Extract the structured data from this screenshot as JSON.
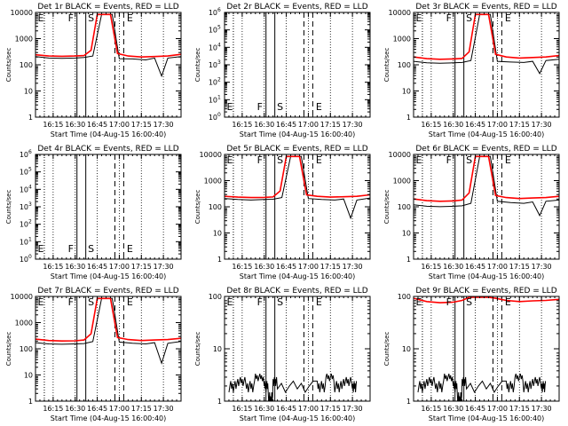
{
  "chart_data": [
    {
      "title": "Det 1r BLACK = Events, RED = LLD",
      "type": "line",
      "yscale": "log",
      "ylim": [
        1,
        12000
      ],
      "ytick_labels": [
        "1",
        "10",
        "100",
        "1000",
        "10000"
      ],
      "ylabel": "Counts/sec",
      "xlabel": "Start Time (04-Aug-15 16:00:40)",
      "xlim": [
        16.05,
        17.7
      ],
      "xtick_labels": [
        "16:15",
        "16:30",
        "16:45",
        "17:00",
        "17:15",
        "17:30"
      ],
      "markers": [
        {
          "label": "E",
          "x": 16.15,
          "style": "dotted"
        },
        {
          "label": "F",
          "x": 16.52,
          "style": "solid"
        },
        {
          "label": "S",
          "x": 16.62,
          "style": "solid"
        },
        {
          "label": "E",
          "x": 16.95,
          "style": "dashed"
        }
      ],
      "series": [
        {
          "name": "Events",
          "color": "#000000",
          "x": [
            16.05,
            16.2,
            16.35,
            16.5,
            16.6,
            16.7,
            16.8,
            16.92,
            17.0,
            17.15,
            17.3,
            17.4,
            17.48,
            17.55,
            17.7
          ],
          "y": [
            230,
            200,
            195,
            200,
            210,
            240,
            10000,
            10000,
            190,
            185,
            170,
            200,
            40,
            200,
            230
          ]
        },
        {
          "name": "LLD",
          "color": "#ff0000",
          "x": [
            16.05,
            16.2,
            16.35,
            16.5,
            16.6,
            16.68,
            16.75,
            16.9,
            16.98,
            17.1,
            17.25,
            17.4,
            17.55,
            17.7
          ],
          "y": [
            270,
            240,
            235,
            240,
            250,
            400,
            10000,
            10000,
            300,
            240,
            220,
            230,
            240,
            280
          ]
        }
      ]
    },
    {
      "title": "Det 2r BLACK = Events, RED = LLD",
      "type": "line",
      "yscale": "log",
      "ylim": [
        1,
        1000000
      ],
      "ytick_labels": [
        "10",
        "10",
        "10",
        "10",
        "10",
        "10",
        "10"
      ],
      "ytick_exponents": [
        "0",
        "1",
        "2",
        "3",
        "4",
        "5",
        "6"
      ],
      "ylabel": "Counts/sec",
      "xlabel": "Start Time (04-Aug-15 16:00:40)",
      "xlim": [
        16.05,
        17.7
      ],
      "xtick_labels": [
        "16:15",
        "16:30",
        "16:45",
        "17:00",
        "17:15",
        "17:30"
      ],
      "markers": [
        {
          "label": "E",
          "x": 16.15,
          "style": "dotted"
        },
        {
          "label": "F",
          "x": 16.52,
          "style": "solid"
        },
        {
          "label": "S",
          "x": 16.62,
          "style": "solid"
        },
        {
          "label": "E",
          "x": 16.95,
          "style": "dashed"
        }
      ],
      "series": []
    },
    {
      "title": "Det 3r BLACK = Events, RED = LLD",
      "type": "line",
      "yscale": "log",
      "ylim": [
        1,
        12000
      ],
      "ytick_labels": [
        "1",
        "10",
        "100",
        "1000",
        "10000"
      ],
      "ylabel": "Counts/sec",
      "xlabel": "Start Time (04-Aug-15 16:00:40)",
      "xlim": [
        16.05,
        17.7
      ],
      "xtick_labels": [
        "16:15",
        "16:30",
        "16:45",
        "17:00",
        "17:15",
        "17:30"
      ],
      "markers": [
        {
          "label": "E",
          "x": 16.15,
          "style": "dotted"
        },
        {
          "label": "F",
          "x": 16.52,
          "style": "solid"
        },
        {
          "label": "S",
          "x": 16.62,
          "style": "solid"
        },
        {
          "label": "E",
          "x": 16.95,
          "style": "dashed"
        }
      ],
      "series": [
        {
          "name": "Events",
          "color": "#000000",
          "x": [
            16.05,
            16.2,
            16.35,
            16.5,
            16.6,
            16.7,
            16.8,
            16.92,
            17.0,
            17.15,
            17.3,
            17.4,
            17.48,
            17.55,
            17.7
          ],
          "y": [
            150,
            130,
            125,
            130,
            135,
            160,
            10000,
            10000,
            150,
            140,
            135,
            150,
            50,
            160,
            180
          ]
        },
        {
          "name": "LLD",
          "color": "#ff0000",
          "x": [
            16.05,
            16.2,
            16.35,
            16.5,
            16.6,
            16.68,
            16.75,
            16.9,
            16.98,
            17.1,
            17.25,
            17.4,
            17.55,
            17.7
          ],
          "y": [
            220,
            190,
            180,
            185,
            195,
            350,
            10000,
            10000,
            280,
            220,
            200,
            210,
            220,
            250
          ]
        }
      ]
    },
    {
      "title": "Det 4r BLACK = Events, RED = LLD",
      "type": "line",
      "yscale": "log",
      "ylim": [
        1,
        1000000
      ],
      "ytick_labels": [
        "10",
        "10",
        "10",
        "10",
        "10",
        "10",
        "10"
      ],
      "ytick_exponents": [
        "0",
        "1",
        "2",
        "3",
        "4",
        "5",
        "6"
      ],
      "ylabel": "Counts/sec",
      "xlabel": "Start Time (04-Aug-15 16:00:40)",
      "xlim": [
        16.05,
        17.7
      ],
      "xtick_labels": [
        "16:15",
        "16:30",
        "16:45",
        "17:00",
        "17:15",
        "17:30"
      ],
      "markers": [
        {
          "label": "E",
          "x": 16.15,
          "style": "dotted"
        },
        {
          "label": "F",
          "x": 16.52,
          "style": "solid"
        },
        {
          "label": "S",
          "x": 16.62,
          "style": "solid"
        },
        {
          "label": "E",
          "x": 16.95,
          "style": "dashed"
        }
      ],
      "series": []
    },
    {
      "title": "Det 5r BLACK = Events, RED = LLD",
      "type": "line",
      "yscale": "log",
      "ylim": [
        1,
        12000
      ],
      "ytick_labels": [
        "1",
        "10",
        "100",
        "1000",
        "10000"
      ],
      "ylabel": "Counts/sec",
      "xlabel": "Start Time (04-Aug-15 16:00:40)",
      "xlim": [
        16.05,
        17.7
      ],
      "xtick_labels": [
        "16:15",
        "16:30",
        "16:45",
        "17:00",
        "17:15",
        "17:30"
      ],
      "markers": [
        {
          "label": "E",
          "x": 16.15,
          "style": "dotted"
        },
        {
          "label": "F",
          "x": 16.52,
          "style": "solid"
        },
        {
          "label": "S",
          "x": 16.62,
          "style": "solid"
        },
        {
          "label": "E",
          "x": 16.95,
          "style": "dashed"
        }
      ],
      "series": [
        {
          "name": "Events",
          "color": "#000000",
          "x": [
            16.05,
            16.2,
            16.35,
            16.5,
            16.6,
            16.7,
            16.8,
            16.92,
            17.0,
            17.15,
            17.3,
            17.4,
            17.48,
            17.55,
            17.7
          ],
          "y": [
            230,
            210,
            200,
            210,
            215,
            250,
            10000,
            10000,
            230,
            210,
            200,
            220,
            40,
            200,
            240
          ]
        },
        {
          "name": "LLD",
          "color": "#ff0000",
          "x": [
            16.05,
            16.2,
            16.35,
            16.5,
            16.6,
            16.68,
            16.75,
            16.9,
            16.98,
            17.1,
            17.25,
            17.4,
            17.55,
            17.7
          ],
          "y": [
            280,
            260,
            250,
            255,
            265,
            450,
            10000,
            10000,
            320,
            280,
            260,
            270,
            280,
            320
          ]
        }
      ]
    },
    {
      "title": "Det 6r BLACK = Events, RED = LLD",
      "type": "line",
      "yscale": "log",
      "ylim": [
        1,
        12000
      ],
      "ytick_labels": [
        "1",
        "10",
        "100",
        "1000",
        "10000"
      ],
      "ylabel": "Counts/sec",
      "xlabel": "Start Time (04-Aug-15 16:00:40)",
      "xlim": [
        16.05,
        17.7
      ],
      "xtick_labels": [
        "16:15",
        "16:30",
        "16:45",
        "17:00",
        "17:15",
        "17:30"
      ],
      "markers": [
        {
          "label": "E",
          "x": 16.15,
          "style": "dotted"
        },
        {
          "label": "F",
          "x": 16.52,
          "style": "solid"
        },
        {
          "label": "S",
          "x": 16.62,
          "style": "solid"
        },
        {
          "label": "E",
          "x": 16.95,
          "style": "dashed"
        }
      ],
      "series": [
        {
          "name": "Events",
          "color": "#000000",
          "x": [
            16.05,
            16.2,
            16.35,
            16.5,
            16.6,
            16.7,
            16.8,
            16.92,
            17.0,
            17.15,
            17.3,
            17.4,
            17.48,
            17.55,
            17.7
          ],
          "y": [
            130,
            115,
            110,
            115,
            120,
            150,
            10000,
            10000,
            180,
            160,
            150,
            170,
            50,
            180,
            200
          ]
        },
        {
          "name": "LLD",
          "color": "#ff0000",
          "x": [
            16.05,
            16.2,
            16.35,
            16.5,
            16.6,
            16.68,
            16.75,
            16.9,
            16.98,
            17.1,
            17.25,
            17.4,
            17.55,
            17.7
          ],
          "y": [
            220,
            190,
            180,
            185,
            200,
            380,
            10000,
            10000,
            300,
            250,
            230,
            240,
            250,
            280
          ]
        }
      ]
    },
    {
      "title": "Det 7r BLACK = Events, RED = LLD",
      "type": "line",
      "yscale": "log",
      "ylim": [
        1,
        12000
      ],
      "ytick_labels": [
        "1",
        "10",
        "100",
        "1000",
        "10000"
      ],
      "ylabel": "Counts/sec",
      "xlabel": "Start Time (04-Aug-15 16:00:40)",
      "xlim": [
        16.05,
        17.7
      ],
      "xtick_labels": [
        "16:15",
        "16:30",
        "16:45",
        "17:00",
        "17:15",
        "17:30"
      ],
      "markers": [
        {
          "label": "E",
          "x": 16.15,
          "style": "dotted"
        },
        {
          "label": "F",
          "x": 16.52,
          "style": "solid"
        },
        {
          "label": "S",
          "x": 16.62,
          "style": "solid"
        },
        {
          "label": "E",
          "x": 16.95,
          "style": "dashed"
        }
      ],
      "series": [
        {
          "name": "Events",
          "color": "#000000",
          "x": [
            16.05,
            16.2,
            16.35,
            16.5,
            16.6,
            16.7,
            16.8,
            16.92,
            17.0,
            17.15,
            17.3,
            17.4,
            17.48,
            17.55,
            17.7
          ],
          "y": [
            190,
            170,
            165,
            170,
            175,
            210,
            10000,
            10000,
            200,
            180,
            170,
            190,
            30,
            180,
            210
          ]
        },
        {
          "name": "LLD",
          "color": "#ff0000",
          "x": [
            16.05,
            16.2,
            16.35,
            16.5,
            16.6,
            16.68,
            16.75,
            16.9,
            16.98,
            17.1,
            17.25,
            17.4,
            17.55,
            17.7
          ],
          "y": [
            260,
            230,
            220,
            225,
            240,
            420,
            10000,
            10000,
            300,
            250,
            230,
            240,
            250,
            280
          ]
        }
      ]
    },
    {
      "title": "Det 8r BLACK = Events, RED = LLD",
      "type": "line",
      "yscale": "log",
      "ylim": [
        1,
        120
      ],
      "ytick_labels": [
        "1",
        "10",
        "100"
      ],
      "ylabel": "Counts/sec",
      "xlabel": "Start Time (04-Aug-15 16:00:40)",
      "xlim": [
        16.05,
        17.7
      ],
      "xtick_labels": [
        "16:15",
        "16:30",
        "16:45",
        "17:00",
        "17:15",
        "17:30"
      ],
      "markers": [
        {
          "label": "E",
          "x": 16.15,
          "style": "dotted"
        },
        {
          "label": "F",
          "x": 16.52,
          "style": "solid"
        },
        {
          "label": "S",
          "x": 16.62,
          "style": "solid"
        },
        {
          "label": "E",
          "x": 16.95,
          "style": "dashed"
        }
      ],
      "series": [
        {
          "name": "Events",
          "color": "#000000",
          "x": [
            16.1,
            16.2,
            16.3,
            16.4,
            16.5,
            16.55,
            16.6,
            16.65,
            16.9,
            17.1,
            17.2,
            17.3,
            17.4,
            17.5
          ],
          "y": [
            2,
            2.5,
            2,
            3,
            2,
            1,
            2.5,
            2,
            2,
            2,
            3,
            2,
            2.5,
            2
          ],
          "noisy": true,
          "gap": [
            16.7,
            17.05
          ]
        }
      ]
    },
    {
      "title": "Det 9r BLACK = Events, RED = LLD",
      "type": "line",
      "yscale": "log",
      "ylim": [
        1,
        120
      ],
      "ytick_labels": [
        "1",
        "10",
        "100"
      ],
      "ylabel": "Counts/sec",
      "xlabel": "Start Time (04-Aug-15 16:00:40)",
      "xlim": [
        16.05,
        17.7
      ],
      "xtick_labels": [
        "16:15",
        "16:30",
        "16:45",
        "17:00",
        "17:15",
        "17:30"
      ],
      "markers": [
        {
          "label": "E",
          "x": 16.15,
          "style": "dotted"
        },
        {
          "label": "F",
          "x": 16.52,
          "style": "solid"
        },
        {
          "label": "S",
          "x": 16.62,
          "style": "solid"
        },
        {
          "label": "E",
          "x": 16.95,
          "style": "dashed"
        }
      ],
      "series": [
        {
          "name": "Events",
          "color": "#000000",
          "x": [
            16.1,
            16.2,
            16.3,
            16.4,
            16.5,
            16.55,
            16.6,
            16.65,
            16.9,
            17.1,
            17.2,
            17.3,
            17.4,
            17.5
          ],
          "y": [
            2,
            2.5,
            2,
            3,
            2,
            1,
            2.5,
            2,
            2,
            2,
            3,
            2,
            2.5,
            2
          ],
          "noisy": true,
          "gap": [
            16.7,
            17.05
          ]
        },
        {
          "name": "LLD",
          "color": "#ff0000",
          "x": [
            16.05,
            16.2,
            16.35,
            16.5,
            16.6,
            16.68,
            16.75,
            16.9,
            16.98,
            17.1,
            17.25,
            17.4,
            17.55,
            17.7
          ],
          "y": [
            110,
            95,
            90,
            92,
            100,
            115,
            115,
            115,
            110,
            100,
            95,
            98,
            100,
            105
          ]
        }
      ]
    }
  ]
}
